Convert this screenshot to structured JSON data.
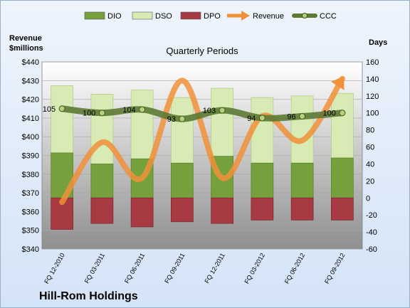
{
  "chart_data": {
    "type": "bar",
    "title": "Quarterly Periods",
    "company": "Hill-Rom Holdings",
    "left_axis_label_line1": "Revenue",
    "left_axis_label_line2": "$millions",
    "right_axis_label": "Days",
    "left_ylim": [
      340,
      440
    ],
    "left_ticks": [
      "$340",
      "$350",
      "$360",
      "$370",
      "$380",
      "$390",
      "$400",
      "$410",
      "$420",
      "$430",
      "$440"
    ],
    "right_ylim": [
      -60,
      160
    ],
    "right_ticks": [
      "-60",
      "-40",
      "-20",
      "0",
      "20",
      "40",
      "60",
      "80",
      "100",
      "120",
      "140",
      "160"
    ],
    "grid": true,
    "legend_position": "top",
    "categories": [
      "FQ 12-2010",
      "FQ 03-2011",
      "FQ 06-2011",
      "FQ 09-2011",
      "FQ 12-2011",
      "FQ 03-2012",
      "FQ 06-2012",
      "FQ 09-2012"
    ],
    "series": [
      {
        "name": "DIO",
        "type": "bar",
        "axis": "right",
        "color": "#76a03c",
        "values": [
          53,
          40,
          46,
          41,
          49,
          41,
          41,
          47
        ]
      },
      {
        "name": "DSO",
        "type": "bar",
        "axis": "right",
        "stack_on": "DIO",
        "color": "#d8ebb4",
        "values": [
          79,
          82,
          81,
          77,
          80,
          77,
          79,
          76
        ]
      },
      {
        "name": "DPO",
        "type": "bar",
        "axis": "right",
        "color": "#a83a44",
        "values": [
          -37,
          -30,
          -34,
          -28,
          -30,
          -26,
          -26,
          -26
        ]
      },
      {
        "name": "Revenue",
        "type": "line",
        "axis": "left",
        "color": "#f0913a",
        "values": [
          365,
          397,
          378,
          430,
          378,
          411,
          398,
          431
        ]
      },
      {
        "name": "CCC",
        "type": "line",
        "axis": "right",
        "color": "#5c7a34",
        "values": [
          105,
          100,
          104,
          93,
          103,
          94,
          96,
          100
        ],
        "labels": [
          "105",
          "100",
          "104",
          "93",
          "103",
          "94",
          "96",
          "100"
        ]
      }
    ]
  }
}
